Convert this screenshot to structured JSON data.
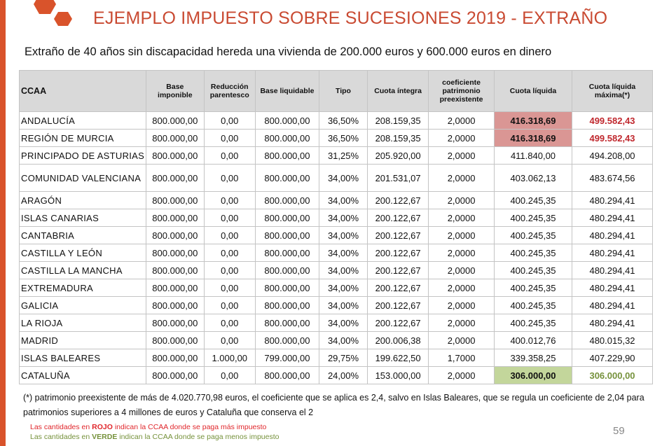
{
  "title": "EJEMPLO IMPUESTO SOBRE SUCESIONES 2019 - EXTRAÑO",
  "subtitle": "Extraño de 40 años sin discapacidad hereda una vivienda de 200.000 euros y 600.000 euros en dinero",
  "colors": {
    "accent": "#d9532b",
    "title": "#c94a32",
    "red_highlight": "#da9694",
    "red_text": "#c0282e",
    "green_highlight": "#c3d69b",
    "green_text": "#76923c"
  },
  "table": {
    "headers": [
      "CCAA",
      "Base imponible",
      "Reducción parentesco",
      "Base liquidable",
      "Tipo",
      "Cuota íntegra",
      "coeficiente patrimonio preexistente",
      "Cuota líquida",
      "Cuota líquida máxima(*)"
    ],
    "rows": [
      [
        "ANDALUCÍA",
        "800.000,00",
        "0,00",
        "800.000,00",
        "36,50%",
        "208.159,35",
        "2,0000",
        "416.318,69",
        "499.582,43"
      ],
      [
        "REGIÓN DE MURCIA",
        "800.000,00",
        "0,00",
        "800.000,00",
        "36,50%",
        "208.159,35",
        "2,0000",
        "416.318,69",
        "499.582,43"
      ],
      [
        "PRINCIPADO DE ASTURIAS",
        "800.000,00",
        "0,00",
        "800.000,00",
        "31,25%",
        "205.920,00",
        "2,0000",
        "411.840,00",
        "494.208,00"
      ],
      [
        "COMUNIDAD VALENCIANA",
        "800.000,00",
        "0,00",
        "800.000,00",
        "34,00%",
        "201.531,07",
        "2,0000",
        "403.062,13",
        "483.674,56"
      ],
      [
        "ARAGÓN",
        "800.000,00",
        "0,00",
        "800.000,00",
        "34,00%",
        "200.122,67",
        "2,0000",
        "400.245,35",
        "480.294,41"
      ],
      [
        "ISLAS CANARIAS",
        "800.000,00",
        "0,00",
        "800.000,00",
        "34,00%",
        "200.122,67",
        "2,0000",
        "400.245,35",
        "480.294,41"
      ],
      [
        "CANTABRIA",
        "800.000,00",
        "0,00",
        "800.000,00",
        "34,00%",
        "200.122,67",
        "2,0000",
        "400.245,35",
        "480.294,41"
      ],
      [
        "CASTILLA Y LEÓN",
        "800.000,00",
        "0,00",
        "800.000,00",
        "34,00%",
        "200.122,67",
        "2,0000",
        "400.245,35",
        "480.294,41"
      ],
      [
        "CASTILLA LA MANCHA",
        "800.000,00",
        "0,00",
        "800.000,00",
        "34,00%",
        "200.122,67",
        "2,0000",
        "400.245,35",
        "480.294,41"
      ],
      [
        "EXTREMADURA",
        "800.000,00",
        "0,00",
        "800.000,00",
        "34,00%",
        "200.122,67",
        "2,0000",
        "400.245,35",
        "480.294,41"
      ],
      [
        "GALICIA",
        "800.000,00",
        "0,00",
        "800.000,00",
        "34,00%",
        "200.122,67",
        "2,0000",
        "400.245,35",
        "480.294,41"
      ],
      [
        "LA RIOJA",
        "800.000,00",
        "0,00",
        "800.000,00",
        "34,00%",
        "200.122,67",
        "2,0000",
        "400.245,35",
        "480.294,41"
      ],
      [
        "MADRID",
        "800.000,00",
        "0,00",
        "800.000,00",
        "34,00%",
        "200.006,38",
        "2,0000",
        "400.012,76",
        "480.015,32"
      ],
      [
        "ISLAS BALEARES",
        "800.000,00",
        "1.000,00",
        "799.000,00",
        "29,75%",
        "199.622,50",
        "1,7000",
        "339.358,25",
        "407.229,90"
      ],
      [
        "CATALUÑA",
        "800.000,00",
        "0,00",
        "800.000,00",
        "24,00%",
        "153.000,00",
        "2,0000",
        "306.000,00",
        "306.000,00"
      ]
    ],
    "row_status": [
      "max",
      "max",
      "",
      "",
      "",
      "",
      "",
      "",
      "",
      "",
      "",
      "",
      "",
      "",
      "min"
    ]
  },
  "note": "(*) patrimonio preexistente de más de 4.020.770,98 euros, el coeficiente que se aplica es 2,4, salvo en Islas Baleares, que se regula un coeficiente de 2,04  para patrimonios superiores a 4 millones de euros y Cataluña que conserva el 2",
  "legend": {
    "red": {
      "pre": "Las cantidades en ",
      "key": "ROJO",
      "post": " indican la CCAA donde se paga más impuesto"
    },
    "green": {
      "pre": "Las cantidades en ",
      "key": "VERDE",
      "post": " indican la CCAA donde se paga menos impuesto"
    }
  },
  "page_number": "59"
}
